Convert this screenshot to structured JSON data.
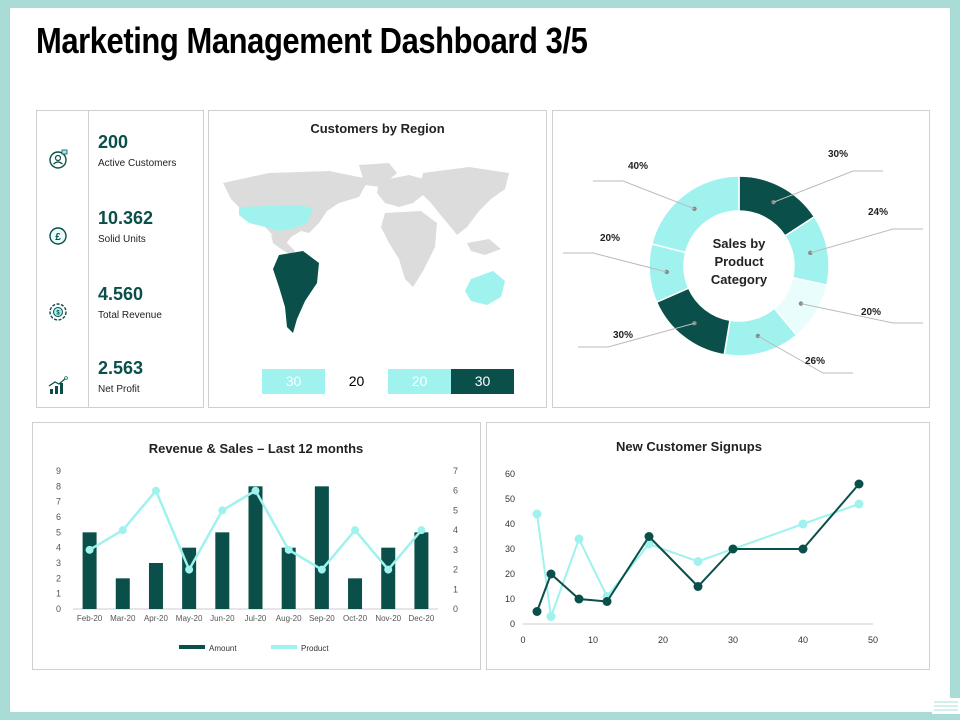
{
  "page": {
    "title": "Marketing Management Dashboard 3/5"
  },
  "kpis": [
    {
      "value": "200",
      "label": "Active Customers",
      "icon": "customer-icon"
    },
    {
      "value": "10.362",
      "label": "Solid Units",
      "icon": "pound-coin-icon"
    },
    {
      "value": "4.560",
      "label": "Total Revenue",
      "icon": "revenue-gear-icon"
    },
    {
      "value": "2.563",
      "label": "Net Profit",
      "icon": "growth-chart-icon"
    }
  ],
  "colors": {
    "dark": "#0a4f49",
    "light": "#9ff2ee",
    "lighter": "#e8fdfc",
    "grey": "#dcdcdc"
  },
  "map": {
    "title": "Customers by Region",
    "legend": [
      {
        "label": "30",
        "color": "#9ff2ee"
      },
      {
        "label": "20",
        "color": "#ffffff"
      },
      {
        "label": "20",
        "color": "#9ff2ee"
      },
      {
        "label": "30",
        "color": "#0a4f49"
      }
    ]
  },
  "chart_data": [
    {
      "type": "pie",
      "title": "Sales by Product Category",
      "labels": [
        "30%",
        "24%",
        "20%",
        "26%",
        "30%",
        "20%",
        "40%"
      ],
      "values": [
        30,
        24,
        20,
        26,
        30,
        20,
        40
      ],
      "colors": [
        "#0a4f49",
        "#9ff2ee",
        "#e8fdfc",
        "#9ff2ee",
        "#0a4f49",
        "#9ff2ee",
        "#9ff2ee"
      ]
    },
    {
      "type": "bar",
      "title": "Revenue & Sales – Last 12 months",
      "categories": [
        "Feb-20",
        "Mar-20",
        "Apr-20",
        "May-20",
        "Jun-20",
        "Jul-20",
        "Aug-20",
        "Sep-20",
        "Oct-20",
        "Nov-20",
        "Dec-20"
      ],
      "series": [
        {
          "name": "Amount",
          "type": "bar",
          "axis": "left",
          "values": [
            5,
            2,
            3,
            4,
            5,
            8,
            4,
            8,
            2,
            4,
            5
          ]
        },
        {
          "name": "Product",
          "type": "line",
          "axis": "right",
          "values": [
            3,
            4,
            6,
            2,
            5,
            6,
            3,
            2,
            4,
            2,
            4
          ]
        }
      ],
      "ylim": [
        0,
        9
      ],
      "y2lim": [
        0,
        7
      ],
      "yticks": [
        "0",
        "1",
        "2",
        "3",
        "4",
        "5",
        "6",
        "7",
        "8",
        "9"
      ],
      "y2ticks": [
        "0",
        "1",
        "2",
        "3",
        "4",
        "5",
        "6",
        "7"
      ],
      "legend": "bottom"
    },
    {
      "type": "scatter",
      "title": "New Customer Signups",
      "series": [
        {
          "color": "#0a4f49",
          "points": [
            [
              2,
              5
            ],
            [
              4,
              20
            ],
            [
              8,
              10
            ],
            [
              12,
              9
            ],
            [
              18,
              35
            ],
            [
              25,
              15
            ],
            [
              30,
              30
            ],
            [
              40,
              30
            ],
            [
              48,
              56
            ]
          ]
        },
        {
          "color": "#9ff2ee",
          "points": [
            [
              2,
              44
            ],
            [
              4,
              3
            ],
            [
              8,
              34
            ],
            [
              12,
              11
            ],
            [
              18,
              32
            ],
            [
              25,
              25
            ],
            [
              30,
              30
            ],
            [
              40,
              40
            ],
            [
              48,
              48
            ]
          ]
        }
      ],
      "xlim": [
        0,
        50
      ],
      "ylim": [
        0,
        60
      ],
      "xticks": [
        "0",
        "10",
        "20",
        "30",
        "40",
        "50"
      ],
      "yticks": [
        "0",
        "10",
        "20",
        "30",
        "40",
        "50",
        "60"
      ]
    }
  ]
}
